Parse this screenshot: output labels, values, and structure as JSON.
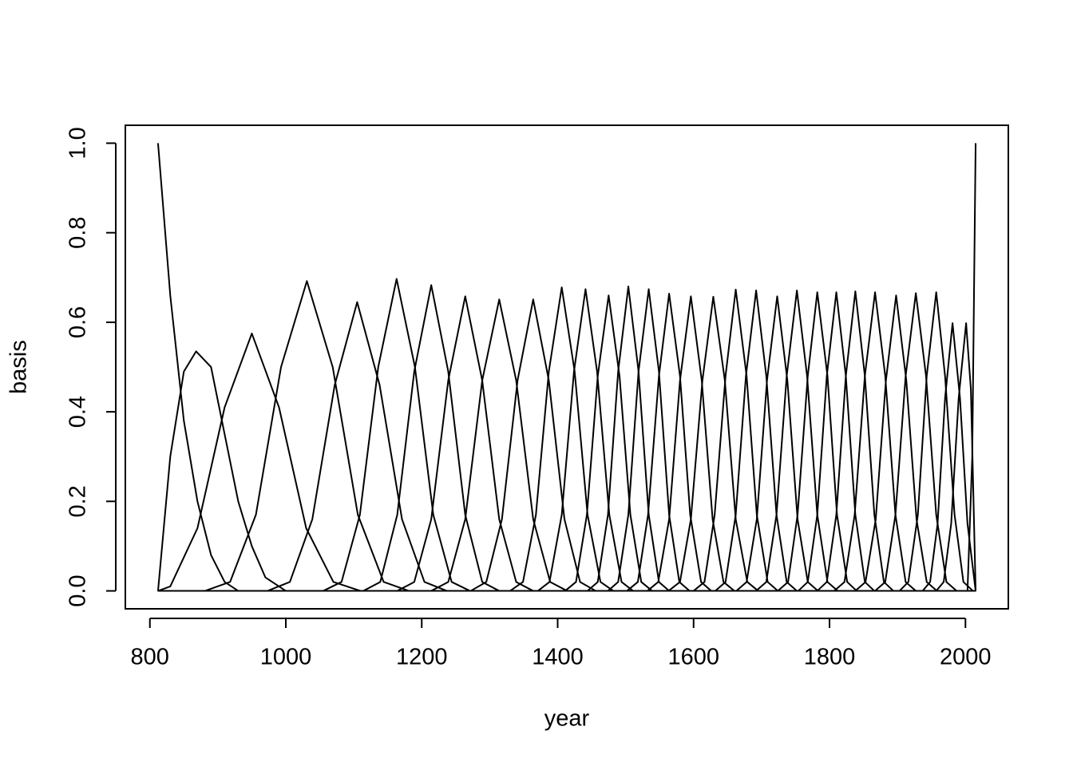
{
  "chart_data": {
    "type": "line",
    "xlabel": "year",
    "ylabel": "basis",
    "color": "#000000",
    "grid": false,
    "xlim": [
      763.9,
      2063.1
    ],
    "ylim": [
      -0.04,
      1.04
    ],
    "xticks": [
      800,
      1000,
      1200,
      1400,
      1600,
      1800,
      2000
    ],
    "yticks": [
      {
        "value": 0,
        "label": "0.0"
      },
      {
        "value": 0.2,
        "label": "0.2"
      },
      {
        "value": 0.4,
        "label": "0.4"
      },
      {
        "value": 0.6,
        "label": "0.6"
      },
      {
        "value": 0.8,
        "label": "0.8"
      },
      {
        "value": 1,
        "label": "1.0"
      }
    ],
    "series": [
      {
        "x": [
          812,
          830,
          850,
          870,
          890,
          910,
          930,
          2015
        ],
        "values": [
          1,
          0.66,
          0.38,
          0.2,
          0.08,
          0.02,
          0,
          0
        ]
      },
      {
        "x": [
          812,
          830,
          850,
          868,
          890,
          910,
          930,
          950,
          970,
          1000,
          2015
        ],
        "values": [
          0,
          0.3,
          0.49,
          0.535,
          0.5,
          0.35,
          0.2,
          0.1,
          0.03,
          0,
          0
        ]
      },
      {
        "x": [
          812,
          830,
          870,
          910,
          950,
          990,
          1030,
          1070,
          1110,
          2015
        ],
        "values": [
          0,
          0.01,
          0.14,
          0.41,
          0.575,
          0.41,
          0.14,
          0.02,
          0,
          0
        ]
      },
      {
        "x": [
          812,
          881,
          918,
          956,
          993,
          1031,
          1069,
          1106,
          1144,
          1181,
          2015
        ],
        "values": [
          0,
          0,
          0.02,
          0.17,
          0.5,
          0.692,
          0.5,
          0.17,
          0.02,
          0,
          0
        ]
      },
      {
        "x": [
          812,
          973,
          1006,
          1039,
          1072,
          1105,
          1138,
          1171,
          1204,
          1237,
          2015
        ],
        "values": [
          0,
          0,
          0.02,
          0.16,
          0.46,
          0.645,
          0.46,
          0.16,
          0.02,
          0,
          0
        ]
      },
      {
        "x": [
          812,
          1055,
          1082,
          1109,
          1136,
          1163,
          1190,
          1217,
          1244,
          1271,
          2015
        ],
        "values": [
          0,
          0,
          0.02,
          0.17,
          0.5,
          0.697,
          0.5,
          0.17,
          0.02,
          0,
          0
        ]
      },
      {
        "x": [
          812,
          1114,
          1139,
          1164,
          1189,
          1214,
          1239,
          1264,
          1289,
          1314,
          2015
        ],
        "values": [
          0,
          0,
          0.02,
          0.17,
          0.49,
          0.683,
          0.49,
          0.17,
          0.02,
          0,
          0
        ]
      },
      {
        "x": [
          812,
          1164,
          1189,
          1214,
          1239,
          1264,
          1289,
          1314,
          1339,
          1364,
          2015
        ],
        "values": [
          0,
          0,
          0.02,
          0.16,
          0.47,
          0.658,
          0.47,
          0.16,
          0.02,
          0,
          0
        ]
      },
      {
        "x": [
          812,
          1214,
          1239,
          1264,
          1289,
          1314,
          1339,
          1364,
          1389,
          1414,
          2015
        ],
        "values": [
          0,
          0,
          0.02,
          0.16,
          0.47,
          0.651,
          0.47,
          0.16,
          0.02,
          0,
          0
        ]
      },
      {
        "x": [
          812,
          1272,
          1295,
          1318,
          1341,
          1364,
          1387,
          1410,
          1433,
          1456,
          2015
        ],
        "values": [
          0,
          0,
          0.02,
          0.16,
          0.47,
          0.651,
          0.47,
          0.16,
          0.02,
          0,
          0
        ]
      },
      {
        "x": [
          812,
          1330,
          1349,
          1368,
          1387,
          1406,
          1425,
          1444,
          1463,
          1482,
          2015
        ],
        "values": [
          0,
          0,
          0.02,
          0.17,
          0.49,
          0.678,
          0.49,
          0.17,
          0.02,
          0,
          0
        ]
      },
      {
        "x": [
          812,
          1371,
          1388,
          1406,
          1424,
          1441,
          1458,
          1476,
          1494,
          1511,
          2015
        ],
        "values": [
          0,
          0,
          0.02,
          0.17,
          0.49,
          0.674,
          0.49,
          0.17,
          0.02,
          0,
          0
        ]
      },
      {
        "x": [
          812,
          1411,
          1427,
          1443,
          1459,
          1475,
          1491,
          1507,
          1523,
          1539,
          2015
        ],
        "values": [
          0,
          0,
          0.02,
          0.17,
          0.48,
          0.66,
          0.48,
          0.17,
          0.02,
          0,
          0
        ]
      },
      {
        "x": [
          812,
          1444,
          1459,
          1474,
          1489,
          1504,
          1519,
          1534,
          1549,
          1564,
          2015
        ],
        "values": [
          0,
          0,
          0.02,
          0.17,
          0.49,
          0.68,
          0.49,
          0.17,
          0.02,
          0,
          0
        ]
      },
      {
        "x": [
          812,
          1474,
          1489,
          1504,
          1519,
          1534,
          1549,
          1564,
          1579,
          1594,
          2015
        ],
        "values": [
          0,
          0,
          0.02,
          0.17,
          0.49,
          0.674,
          0.49,
          0.17,
          0.02,
          0,
          0
        ]
      },
      {
        "x": [
          812,
          1502,
          1518,
          1533,
          1549,
          1564,
          1580,
          1595,
          1611,
          1626,
          2015
        ],
        "values": [
          0,
          0,
          0.02,
          0.17,
          0.48,
          0.664,
          0.48,
          0.17,
          0.02,
          0,
          0
        ]
      },
      {
        "x": [
          812,
          1532,
          1548,
          1564,
          1580,
          1596,
          1612,
          1628,
          1644,
          1660,
          2015
        ],
        "values": [
          0,
          0,
          0.02,
          0.16,
          0.47,
          0.658,
          0.47,
          0.16,
          0.02,
          0,
          0
        ]
      },
      {
        "x": [
          812,
          1563,
          1580,
          1596,
          1613,
          1629,
          1646,
          1662,
          1679,
          1695,
          2015
        ],
        "values": [
          0,
          0,
          0.02,
          0.16,
          0.47,
          0.657,
          0.47,
          0.16,
          0.02,
          0,
          0
        ]
      },
      {
        "x": [
          812,
          1600,
          1616,
          1631,
          1647,
          1662,
          1678,
          1693,
          1709,
          1724,
          2015
        ],
        "values": [
          0,
          0,
          0.02,
          0.17,
          0.48,
          0.673,
          0.48,
          0.17,
          0.02,
          0,
          0
        ]
      },
      {
        "x": [
          812,
          1632,
          1647,
          1662,
          1677,
          1692,
          1707,
          1722,
          1737,
          1752,
          2015
        ],
        "values": [
          0,
          0,
          0.02,
          0.17,
          0.48,
          0.671,
          0.48,
          0.17,
          0.02,
          0,
          0
        ]
      },
      {
        "x": [
          812,
          1663,
          1678,
          1693,
          1708,
          1723,
          1738,
          1753,
          1768,
          1783,
          2015
        ],
        "values": [
          0,
          0,
          0.02,
          0.16,
          0.47,
          0.658,
          0.47,
          0.16,
          0.02,
          0,
          0
        ]
      },
      {
        "x": [
          812,
          1692,
          1707,
          1722,
          1737,
          1752,
          1767,
          1782,
          1797,
          1812,
          2015
        ],
        "values": [
          0,
          0,
          0.02,
          0.17,
          0.48,
          0.671,
          0.48,
          0.17,
          0.02,
          0,
          0
        ]
      },
      {
        "x": [
          812,
          1724,
          1739,
          1753,
          1768,
          1782,
          1797,
          1811,
          1826,
          1840,
          2015
        ],
        "values": [
          0,
          0,
          0.02,
          0.17,
          0.48,
          0.667,
          0.48,
          0.17,
          0.02,
          0,
          0
        ]
      },
      {
        "x": [
          812,
          1754,
          1768,
          1782,
          1796,
          1810,
          1824,
          1838,
          1852,
          1866,
          2015
        ],
        "values": [
          0,
          0,
          0.02,
          0.17,
          0.48,
          0.667,
          0.48,
          0.17,
          0.02,
          0,
          0
        ]
      },
      {
        "x": [
          812,
          1782,
          1796,
          1810,
          1824,
          1838,
          1852,
          1866,
          1880,
          1894,
          2015
        ],
        "values": [
          0,
          0,
          0.02,
          0.17,
          0.48,
          0.669,
          0.48,
          0.17,
          0.02,
          0,
          0
        ]
      },
      {
        "x": [
          812,
          1807,
          1822,
          1837,
          1852,
          1867,
          1882,
          1897,
          1912,
          1927,
          2015
        ],
        "values": [
          0,
          0,
          0.02,
          0.17,
          0.48,
          0.667,
          0.48,
          0.17,
          0.02,
          0,
          0
        ]
      },
      {
        "x": [
          812,
          1838,
          1853,
          1868,
          1883,
          1898,
          1913,
          1928,
          1943,
          1958,
          2015
        ],
        "values": [
          0,
          0,
          0.02,
          0.16,
          0.47,
          0.66,
          0.47,
          0.16,
          0.02,
          0,
          0
        ]
      },
      {
        "x": [
          812,
          1867,
          1882,
          1897,
          1912,
          1927,
          1942,
          1957,
          1972,
          1987,
          2015
        ],
        "values": [
          0,
          0,
          0.02,
          0.17,
          0.48,
          0.665,
          0.48,
          0.17,
          0.02,
          0,
          0
        ]
      },
      {
        "x": [
          812,
          1903,
          1916,
          1930,
          1943,
          1957,
          1970,
          1984,
          1997,
          2011,
          2015
        ],
        "values": [
          0,
          0,
          0.02,
          0.17,
          0.48,
          0.667,
          0.48,
          0.17,
          0.02,
          0,
          0
        ]
      },
      {
        "x": [
          812,
          1937,
          1948,
          1959,
          1970,
          1981,
          1992,
          2003,
          2015
        ],
        "values": [
          0,
          0,
          0.02,
          0.15,
          0.43,
          0.598,
          0.43,
          0.15,
          0
        ]
      },
      {
        "x": [
          812,
          1957,
          1968,
          1979,
          1990,
          2001,
          2008,
          2015
        ],
        "values": [
          0,
          0,
          0.02,
          0.15,
          0.43,
          0.598,
          0.45,
          0
        ]
      },
      {
        "x": [
          812,
          2003,
          2010,
          2015
        ],
        "values": [
          0,
          0,
          0.3,
          1
        ]
      }
    ]
  }
}
